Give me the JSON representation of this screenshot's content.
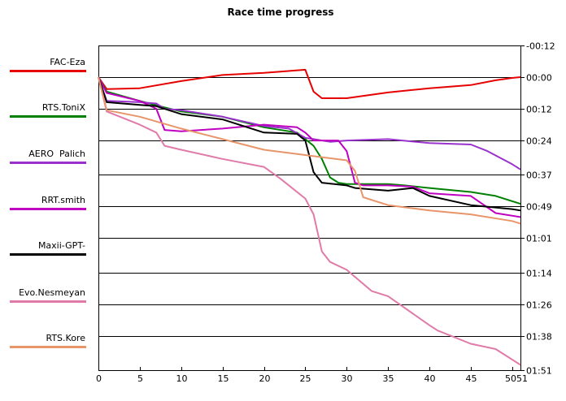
{
  "chart_data": {
    "type": "line",
    "title": "Race time progress",
    "xlabel": "",
    "ylabel": "",
    "xlim": [
      0,
      51
    ],
    "x_ticks": [
      0,
      5,
      10,
      15,
      20,
      25,
      30,
      35,
      40,
      45,
      50,
      51
    ],
    "x_tick_labels": [
      "0",
      "5",
      "10",
      "15",
      "20",
      "25",
      "30",
      "35",
      "40",
      "45",
      "50",
      "51"
    ],
    "ylim_seconds": [
      -12,
      111
    ],
    "y_ticks_seconds": [
      -12,
      0,
      12,
      24,
      37,
      49,
      61,
      74,
      86,
      98,
      111
    ],
    "y_tick_labels": [
      "-00:12",
      "00:00",
      "00:12",
      "00:24",
      "00:37",
      "00:49",
      "01:01",
      "01:14",
      "01:26",
      "01:38",
      "01:51"
    ],
    "y_axis_side": "right",
    "y_unit": "seconds behind leader (mm:ss)",
    "grid": "horizontal",
    "legend_position": "left",
    "series": [
      {
        "name": "FAC-Eza",
        "color": "#e60000",
        "x": [
          0,
          1,
          5,
          10,
          15,
          20,
          22,
          25,
          26,
          27,
          30,
          35,
          40,
          45,
          48,
          50,
          51
        ],
        "y": [
          0,
          4.5,
          4.2,
          1.5,
          -0.8,
          -1.6,
          -2.1,
          -2.8,
          5.5,
          8,
          8,
          5.8,
          4.2,
          3,
          1.2,
          0.3,
          0
        ]
      },
      {
        "name": "RTS.ToniX",
        "color": "#008000",
        "x": [
          0,
          1,
          5,
          8,
          10,
          15,
          20,
          24,
          26,
          27,
          28,
          29,
          30,
          35,
          37,
          40,
          45,
          48,
          51
        ],
        "y": [
          0,
          5.5,
          9,
          11.5,
          13,
          15,
          19,
          21,
          26,
          31,
          38,
          40,
          40.5,
          40.5,
          41,
          42,
          43.5,
          45,
          48
        ]
      },
      {
        "name": "AERO_Palich",
        "color": "#9932cc",
        "x": [
          0,
          1,
          5,
          7,
          8,
          10,
          15,
          20,
          23,
          25,
          28,
          30,
          35,
          40,
          45,
          47,
          50,
          51
        ],
        "y": [
          0,
          9,
          9.5,
          10,
          12,
          12.5,
          15,
          18.5,
          19.5,
          23,
          24.5,
          24,
          23.5,
          25,
          25.5,
          28,
          33,
          35
        ]
      },
      {
        "name": "RRT.smith",
        "color": "#c000c0",
        "x": [
          0,
          1,
          5,
          7,
          8,
          10,
          15,
          20,
          24,
          25,
          26,
          29,
          30,
          31,
          32,
          35,
          38,
          40,
          45,
          48,
          51
        ],
        "y": [
          0,
          6,
          9,
          12,
          20,
          20.5,
          19.5,
          18,
          19,
          21,
          24,
          24,
          28,
          40,
          41,
          41,
          41.5,
          44,
          45,
          51.5,
          53
        ]
      },
      {
        "name": "Maxii-GPT-",
        "color": "#000000",
        "x": [
          0,
          1,
          5,
          7,
          10,
          15,
          20,
          24,
          25,
          26,
          27,
          30,
          31,
          35,
          38,
          40,
          45,
          50,
          51
        ],
        "y": [
          0,
          9.5,
          10.5,
          11,
          14,
          16,
          21,
          21.5,
          24,
          36,
          40,
          41,
          42,
          43,
          42,
          45,
          48.5,
          50,
          50.5
        ]
      },
      {
        "name": "Evo.Nesmeyan",
        "color": "#e07aa8",
        "x": [
          0,
          1,
          5,
          7,
          8,
          10,
          15,
          20,
          22,
          25,
          26,
          27,
          28,
          30,
          33,
          35,
          40,
          41,
          45,
          48,
          51
        ],
        "y": [
          0,
          13,
          18,
          21,
          26,
          27.5,
          31,
          34,
          38.5,
          46,
          52,
          66,
          70,
          73,
          81,
          83,
          94,
          96,
          101,
          103,
          109
        ]
      },
      {
        "name": "RTS.Kore",
        "color": "#e8956a",
        "x": [
          0,
          1,
          5,
          10,
          15,
          20,
          25,
          30,
          31,
          32,
          35,
          40,
          45,
          50,
          51
        ],
        "y": [
          0,
          12.5,
          15,
          19.5,
          23.5,
          27.5,
          29.5,
          31.5,
          35.5,
          45.5,
          48.5,
          50.5,
          52,
          54.5,
          55.5
        ]
      }
    ]
  }
}
